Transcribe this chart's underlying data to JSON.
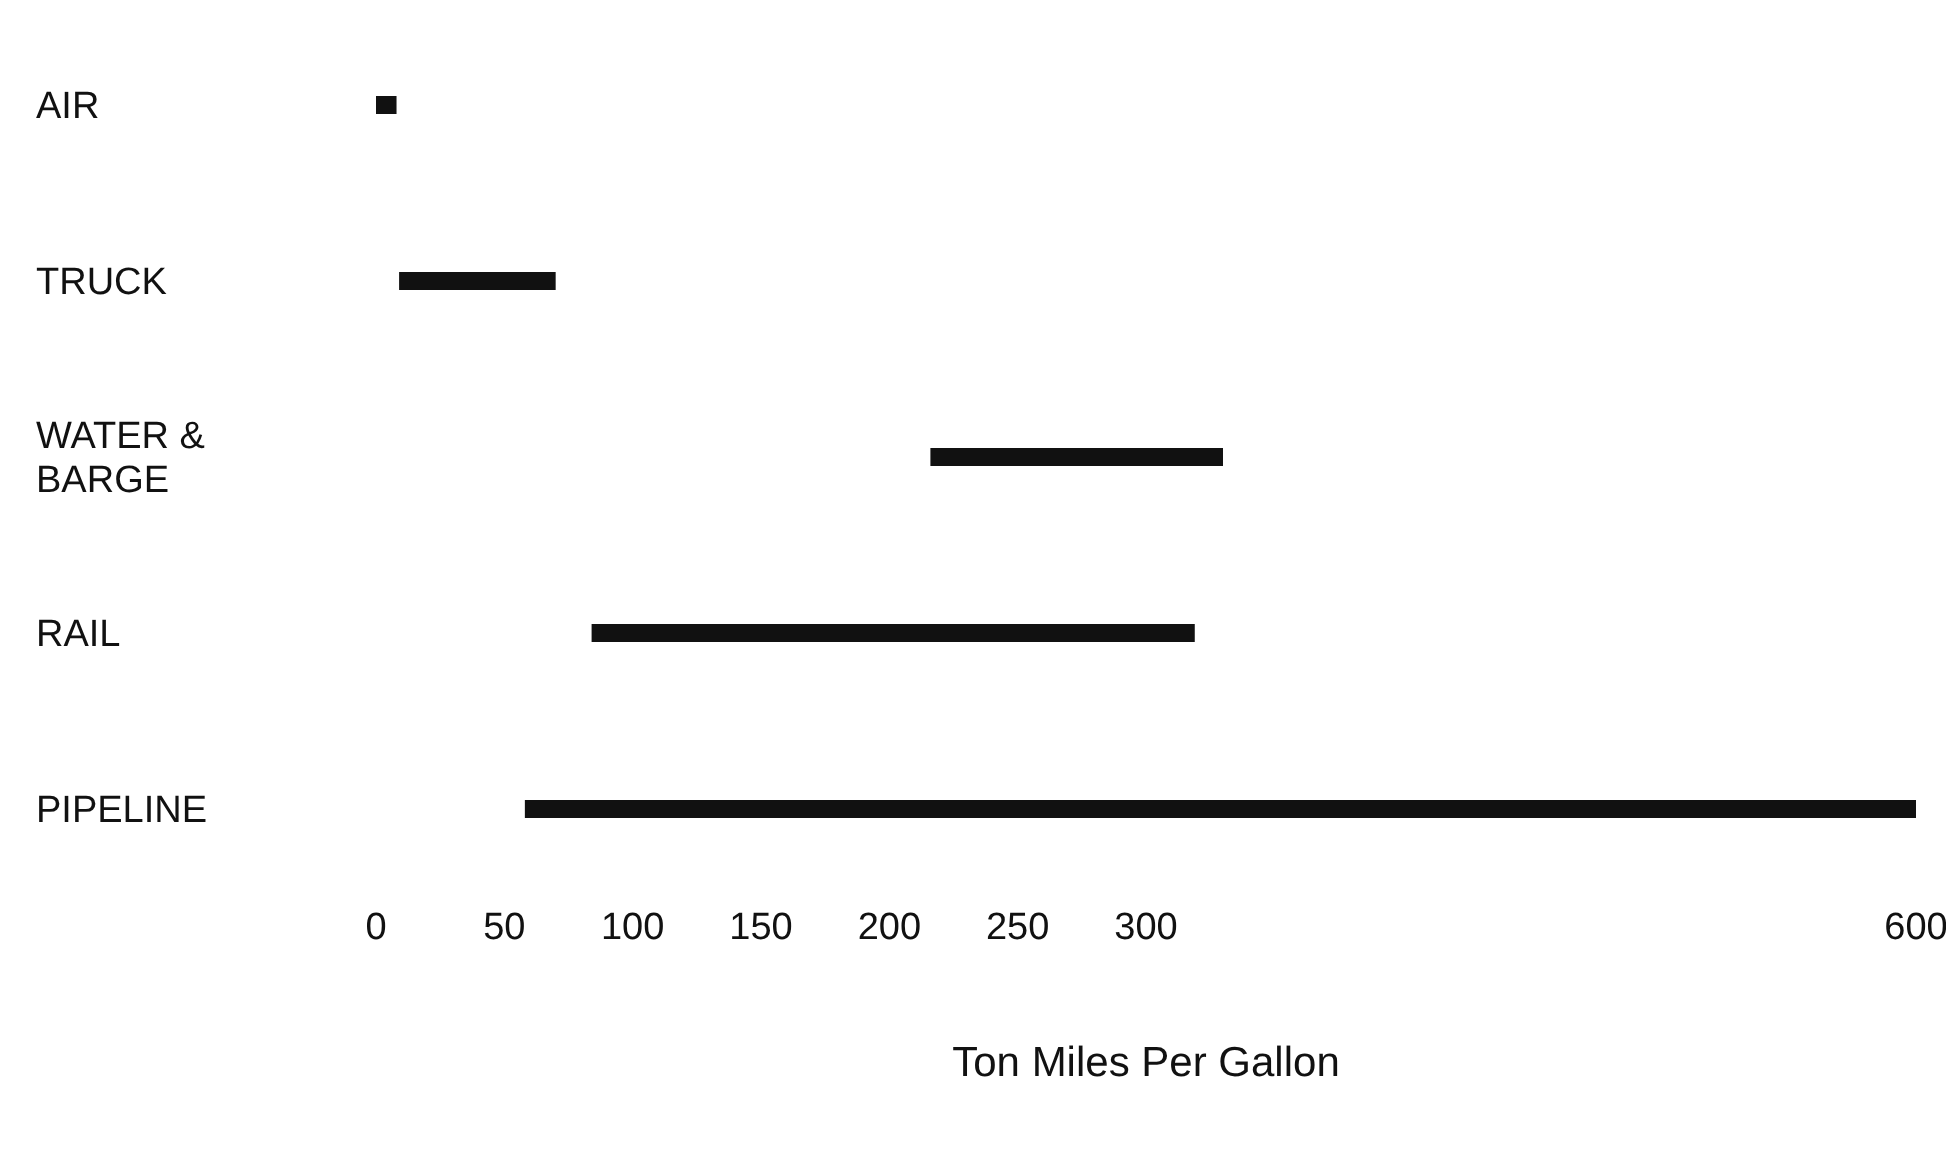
{
  "chart_data": {
    "type": "bar",
    "orientation": "horizontal",
    "xlabel": "Ton Miles Per Gallon",
    "categories": [
      "AIR",
      "TRUCK",
      "WATER & BARGE",
      "RAIL",
      "PIPELINE"
    ],
    "base": [
      0,
      9,
      216,
      84,
      58
    ],
    "values": [
      8,
      61,
      114,
      235,
      542
    ],
    "color": "#111111",
    "xlim": [
      0,
      600
    ],
    "xticks": [
      0,
      50,
      100,
      150,
      200,
      250,
      300,
      600
    ]
  }
}
